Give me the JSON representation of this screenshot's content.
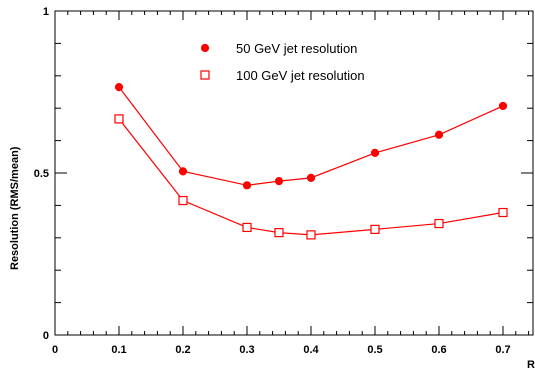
{
  "chart_data": {
    "type": "line",
    "xlabel": "R",
    "ylabel": "Resolution (RMS/mean)",
    "xlim": [
      0,
      0.75
    ],
    "ylim": [
      0,
      1
    ],
    "x_ticks": [
      "0",
      "0.1",
      "0.2",
      "0.3",
      "0.4",
      "0.5",
      "0.6",
      "0.7"
    ],
    "y_ticks": [
      "0",
      "0.5",
      "1"
    ],
    "grid": false,
    "legend_position": "top-center",
    "series": [
      {
        "name": "50 GeV jet resolution",
        "marker": "filled-circle",
        "color": "#ff0000",
        "x": [
          0.1,
          0.2,
          0.3,
          0.35,
          0.4,
          0.5,
          0.6,
          0.7
        ],
        "y": [
          0.765,
          0.505,
          0.462,
          0.475,
          0.485,
          0.562,
          0.618,
          0.707
        ]
      },
      {
        "name": "100 GeV jet resolution",
        "marker": "open-square",
        "color": "#ff0000",
        "x": [
          0.1,
          0.2,
          0.3,
          0.35,
          0.4,
          0.5,
          0.6,
          0.7
        ],
        "y": [
          0.667,
          0.415,
          0.332,
          0.316,
          0.309,
          0.326,
          0.344,
          0.378
        ]
      }
    ]
  }
}
